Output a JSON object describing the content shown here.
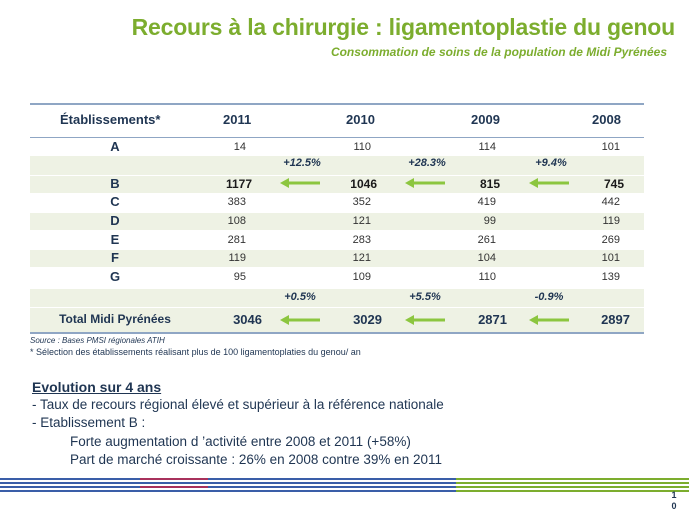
{
  "title": "Recours à la chirurgie : ligamentoplastie du genou",
  "subtitle": "Consommation  de soins de la population de Midi Pyrénées",
  "table": {
    "header": {
      "label": "Établissements*",
      "years": [
        "2011",
        "2010",
        "2009",
        "2008"
      ]
    },
    "rows": [
      {
        "name": "A",
        "values": [
          "14",
          "110",
          "114",
          "101"
        ]
      },
      {
        "name": "B",
        "values": [
          "1177",
          "1046",
          "815",
          "745"
        ]
      },
      {
        "name": "C",
        "values": [
          "383",
          "352",
          "419",
          "442"
        ]
      },
      {
        "name": "D",
        "values": [
          "108",
          "121",
          "99",
          "119"
        ]
      },
      {
        "name": "E",
        "values": [
          "281",
          "283",
          "261",
          "269"
        ]
      },
      {
        "name": "F",
        "values": [
          "119",
          "121",
          "104",
          "101"
        ]
      },
      {
        "name": "G",
        "values": [
          "95",
          "109",
          "110",
          "139"
        ]
      }
    ],
    "b_changes": [
      "+12.5%",
      "+28.3%",
      "+9.4%"
    ],
    "total_changes": [
      "+0.5%",
      "+5.5%",
      "-0.9%"
    ],
    "total": {
      "name": "Total Midi Pyrénées",
      "values": [
        "3046",
        "3029",
        "2871",
        "2897"
      ]
    }
  },
  "source": "Source : Bases PMSI régionales ATIH",
  "note": "* Sélection des établissements réalisant plus de 100 ligamentoplaties du genou/ an",
  "evolution": {
    "title": "Evolution  sur 4 ans",
    "lines": [
      "- Taux de recours régional élevé et supérieur à la référence  nationale",
      "- Etablissement B :",
      "Forte augmentation d ’activité entre 2008 et 2011 (+58%)",
      "Part de marché croissante : 26% en 2008 contre 39% en 2011"
    ]
  },
  "page_number": [
    "1",
    "0"
  ],
  "colors": {
    "accent_green": "#7cad2e",
    "navy": "#1f3552",
    "row_band": "#eef2e4"
  }
}
